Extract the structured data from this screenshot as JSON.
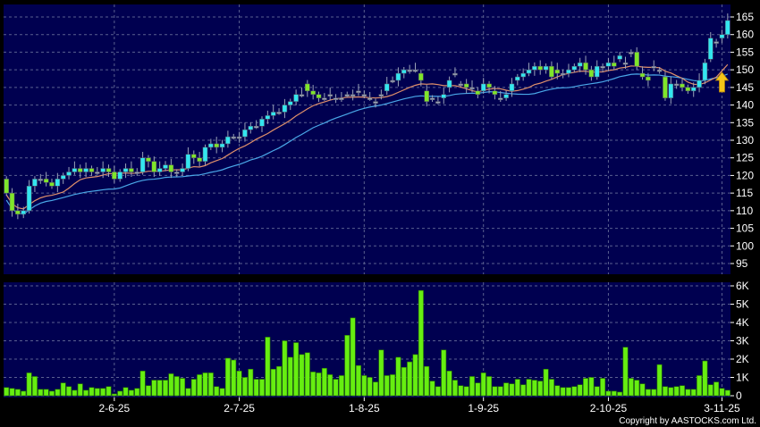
{
  "chart_data": [
    {
      "type": "candlestick",
      "panel": "price",
      "ylim": [
        92,
        167
      ],
      "y_ticks": [
        95,
        100,
        105,
        110,
        115,
        120,
        125,
        130,
        135,
        140,
        145,
        150,
        155,
        160,
        165
      ],
      "grid": true,
      "colors": {
        "background": "#000050",
        "up": "#33e6f0",
        "down": "#7fe62a",
        "doji": "#9aa3b8",
        "ma_short": "#e0906a",
        "ma_long": "#4aa8e8",
        "arrow": "#f5c518",
        "grid": "#5a6090"
      },
      "moving_averages": [
        {
          "period": 10
        },
        {
          "period": 20
        }
      ],
      "open": [
        119,
        115,
        110,
        109,
        110,
        117,
        119,
        119,
        118,
        117,
        119,
        120,
        121,
        122,
        121,
        122,
        121,
        121,
        122,
        121,
        119,
        121,
        122,
        121,
        121,
        125,
        124,
        121,
        122,
        123,
        121,
        121,
        122,
        126,
        125,
        124,
        128,
        129,
        128,
        129,
        131,
        131,
        131,
        133,
        134,
        134,
        136,
        137,
        138,
        138,
        140,
        141,
        143,
        146,
        144,
        143,
        142,
        143,
        142,
        142,
        143,
        143,
        144,
        143,
        142,
        141,
        143,
        144,
        147,
        147,
        149,
        150,
        150,
        149,
        144,
        142,
        141,
        142,
        145,
        149,
        146,
        146,
        145,
        144,
        144,
        146,
        144,
        142,
        142,
        144,
        147,
        148,
        149,
        150,
        151,
        150,
        151,
        150,
        149,
        149,
        150,
        151,
        152,
        150,
        148,
        151,
        151,
        152,
        153,
        152,
        155,
        155,
        149,
        148,
        151,
        150,
        148,
        142,
        146,
        146,
        145,
        144,
        145,
        147,
        153,
        158,
        159,
        160
      ],
      "close": [
        115,
        110,
        109,
        110,
        117,
        119,
        119,
        118,
        117,
        119,
        120,
        121,
        122,
        121,
        122,
        121,
        121,
        122,
        121,
        119,
        121,
        122,
        121,
        121,
        125,
        124,
        121,
        122,
        123,
        121,
        121,
        122,
        126,
        125,
        124,
        128,
        129,
        128,
        129,
        131,
        131,
        131,
        133,
        134,
        134,
        136,
        137,
        138,
        138,
        140,
        141,
        143,
        143,
        144,
        143,
        142,
        142,
        143,
        142,
        142,
        143,
        143,
        144,
        143,
        142,
        141,
        143,
        146,
        147,
        149,
        150,
        150,
        150,
        147,
        141,
        142,
        141,
        143,
        147,
        149,
        146,
        145,
        145,
        143,
        146,
        145,
        143,
        142,
        143,
        146,
        148,
        149,
        150,
        151,
        150,
        151,
        148,
        149,
        149,
        150,
        151,
        152,
        150,
        148,
        151,
        151,
        152,
        151,
        154,
        152,
        155,
        151,
        148,
        147,
        151,
        150,
        142,
        146,
        146,
        145,
        144,
        145,
        147,
        152,
        159,
        158,
        160,
        164
      ],
      "x_ticks": [
        {
          "label": "2-6-25",
          "index": 19
        },
        {
          "label": "2-7-25",
          "index": 41
        },
        {
          "label": "1-8-25",
          "index": 63
        },
        {
          "label": "1-9-25",
          "index": 84
        },
        {
          "label": "2-10-25",
          "index": 106
        },
        {
          "label": "3-11-25",
          "index": 126
        }
      ],
      "annotation": {
        "type": "arrow-up",
        "index": 126,
        "price": 146
      }
    },
    {
      "type": "bar",
      "panel": "volume",
      "ylim": [
        0,
        6000
      ],
      "y_ticks": [
        {
          "value": 0,
          "label": "0"
        },
        {
          "value": 1000,
          "label": "1K"
        },
        {
          "value": 2000,
          "label": "2K"
        },
        {
          "value": 3000,
          "label": "3K"
        },
        {
          "value": 4000,
          "label": "4K"
        },
        {
          "value": 5000,
          "label": "5K"
        },
        {
          "value": 6000,
          "label": "6K"
        }
      ],
      "grid": true,
      "colors": {
        "bar": "#66ee11",
        "bar_edge": "#2a7a00"
      },
      "values": [
        450,
        400,
        350,
        250,
        1250,
        1050,
        350,
        350,
        250,
        350,
        700,
        500,
        300,
        650,
        300,
        450,
        400,
        400,
        500,
        100,
        250,
        450,
        300,
        400,
        1350,
        550,
        850,
        850,
        850,
        1200,
        1050,
        950,
        400,
        900,
        1150,
        1250,
        1250,
        500,
        400,
        2050,
        1950,
        1350,
        1000,
        1450,
        900,
        900,
        3200,
        1450,
        1600,
        3000,
        2100,
        2900,
        2250,
        2350,
        1300,
        1250,
        1500,
        1150,
        900,
        1100,
        3300,
        4250,
        1650,
        1100,
        1000,
        750,
        2500,
        1100,
        1150,
        2100,
        1550,
        1850,
        2250,
        5750,
        1600,
        800,
        500,
        2500,
        1350,
        850,
        550,
        500,
        1050,
        700,
        1250,
        1050,
        500,
        500,
        700,
        650,
        900,
        600,
        900,
        850,
        800,
        1450,
        900,
        550,
        450,
        450,
        500,
        600,
        950,
        1000,
        500,
        950,
        250,
        250,
        200,
        2650,
        950,
        850,
        650,
        350,
        350,
        1700,
        500,
        450,
        500,
        550,
        350,
        350,
        1100,
        1900,
        600,
        750,
        400,
        300
      ]
    }
  ],
  "footer": {
    "copyright": "Copyright by AASTOCKS.com Ltd."
  }
}
